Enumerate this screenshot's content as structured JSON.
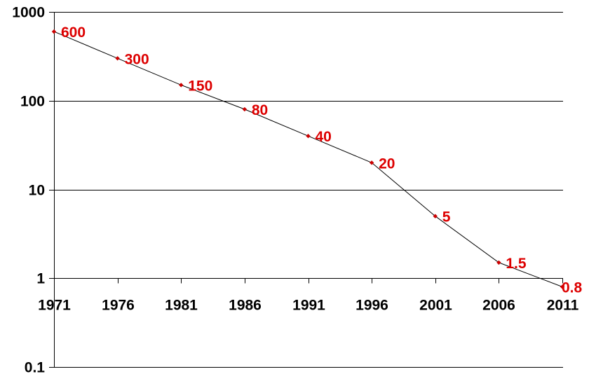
{
  "chart_data": {
    "type": "line",
    "title": "",
    "xlabel": "",
    "ylabel": "",
    "y_scale": "log",
    "ylim": [
      0.1,
      1000
    ],
    "y_ticks": [
      {
        "value": 1000,
        "label": "1000"
      },
      {
        "value": 100,
        "label": "100"
      },
      {
        "value": 10,
        "label": "10"
      },
      {
        "value": 1,
        "label": "1"
      },
      {
        "value": 0.1,
        "label": "0.1"
      }
    ],
    "x_axis_crosses_at": 1,
    "grid": true,
    "legend": "none",
    "colors": {
      "line": "#000000",
      "marker": "#cc0000",
      "data_label": "#dd0000",
      "grid": "#000000"
    },
    "series": [
      {
        "x": [
          "1971",
          "1976",
          "1981",
          "1986",
          "1991",
          "1996",
          "2001",
          "2006",
          "2011"
        ],
        "values": [
          600,
          300,
          150,
          80,
          40,
          20,
          5,
          1.5,
          0.8
        ],
        "data_labels": [
          "600",
          "300",
          "150",
          "80",
          "40",
          "20",
          "5",
          "1.5",
          "0.8"
        ]
      }
    ]
  }
}
